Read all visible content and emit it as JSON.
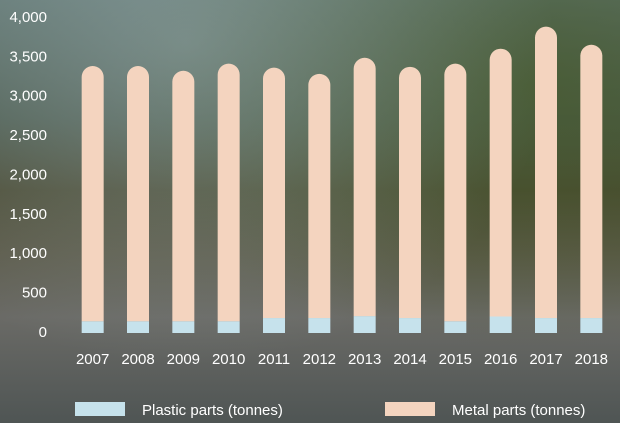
{
  "chart_data": {
    "type": "stacked-bar",
    "categories": [
      "2007",
      "2008",
      "2009",
      "2010",
      "2011",
      "2012",
      "2013",
      "2014",
      "2015",
      "2016",
      "2017",
      "2018"
    ],
    "series": [
      {
        "name": "Plastic parts (tonnes)",
        "color": "#c6e2ec",
        "values": [
          150,
          150,
          150,
          150,
          190,
          190,
          215,
          190,
          150,
          210,
          190,
          190
        ]
      },
      {
        "name": "Metal parts (tonnes)",
        "color": "#f4d4bf",
        "values": [
          3240,
          3240,
          3180,
          3270,
          3180,
          3100,
          3280,
          3190,
          3270,
          3400,
          3700,
          3470
        ]
      }
    ],
    "ylim": [
      0,
      4000
    ],
    "yticks": [
      0,
      500,
      {
        "value": 1000,
        "label": "1,000"
      },
      {
        "value": 1500,
        "label": "1,500"
      },
      {
        "value": 2000,
        "label": "2,000"
      },
      {
        "value": 2500,
        "label": "2,500"
      },
      {
        "value": 3000,
        "label": "3,000"
      },
      {
        "value": 3500,
        "label": "3,500"
      },
      {
        "value": 4000,
        "label": "4,000"
      }
    ],
    "legend": "bottom"
  }
}
